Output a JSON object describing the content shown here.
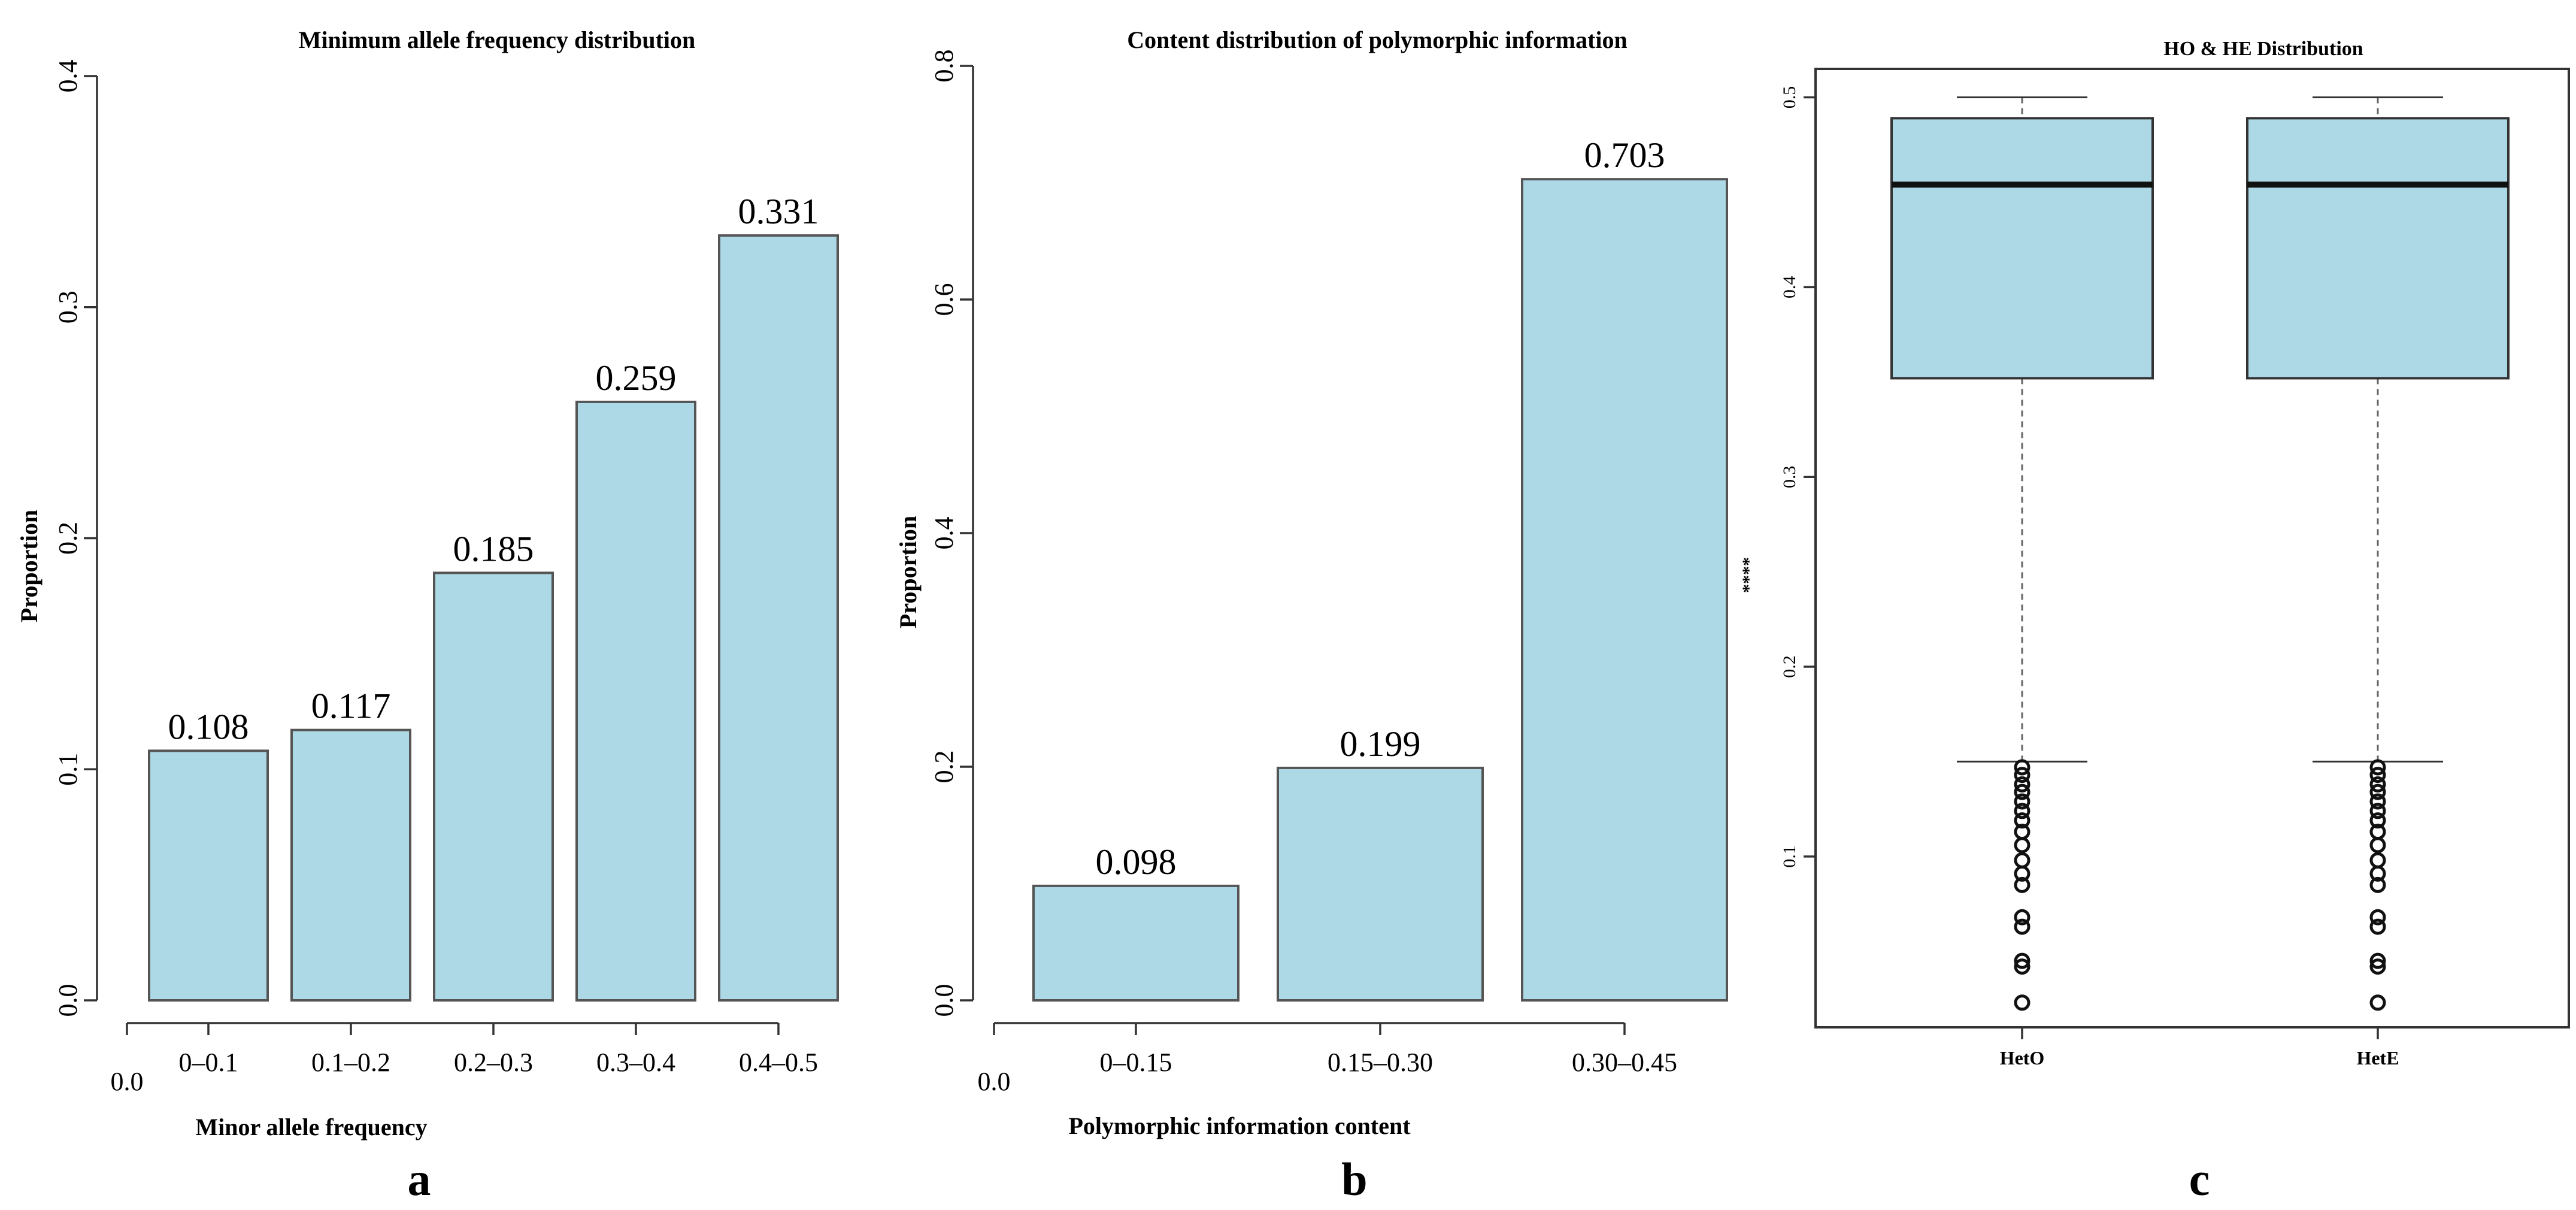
{
  "chart_data": [
    {
      "panel": "a",
      "type": "bar",
      "title": "Minimum allele frequency distribution",
      "xlabel": "Minor allele frequency",
      "ylabel": "Proportion",
      "categories": [
        "0–0.1",
        "0.1–0.2",
        "0.2–0.3",
        "0.3–0.4",
        "0.4–0.5"
      ],
      "values": [
        0.108,
        0.117,
        0.185,
        0.259,
        0.331
      ],
      "data_labels": [
        "0.108",
        "0.117",
        "0.185",
        "0.259",
        "0.331"
      ],
      "x_origin_label": "0.0",
      "ylim": [
        0,
        0.4
      ],
      "yticks": [
        0,
        0.1,
        0.2,
        0.3,
        0.4
      ],
      "ytick_labels": [
        "0.0",
        "0.1",
        "0.2",
        "0.3",
        "0.4"
      ],
      "bar_color": "#add8e6"
    },
    {
      "panel": "b",
      "type": "bar",
      "title": "Content distribution of polymorphic information",
      "xlabel": "Polymorphic information content",
      "ylabel": "Proportion",
      "categories": [
        "0–0.15",
        "0.15–0.30",
        "0.30–0.45"
      ],
      "values": [
        0.098,
        0.199,
        0.703
      ],
      "data_labels": [
        "0.098",
        "0.199",
        "0.703"
      ],
      "x_origin_label": "0.0",
      "ylim": [
        0,
        0.8
      ],
      "yticks": [
        0,
        0.2,
        0.4,
        0.6,
        0.8
      ],
      "ytick_labels": [
        "0.0",
        "0.2",
        "0.4",
        "0.6",
        "0.8"
      ],
      "bar_color": "#add8e6"
    },
    {
      "panel": "c",
      "type": "box",
      "title": "HO  &  HE Distribution",
      "ylabel": "****",
      "categories": [
        "HetO",
        "HetE"
      ],
      "series": [
        {
          "name": "HetO",
          "whisker_low": 0.15,
          "q1": 0.352,
          "median": 0.454,
          "q3": 0.489,
          "whisker_high": 0.5,
          "outliers": [
            0.147,
            0.143,
            0.138,
            0.134,
            0.129,
            0.124,
            0.119,
            0.113,
            0.106,
            0.098,
            0.091,
            0.085,
            0.068,
            0.063,
            0.045,
            0.042,
            0.023
          ]
        },
        {
          "name": "HetE",
          "whisker_low": 0.15,
          "q1": 0.352,
          "median": 0.454,
          "q3": 0.489,
          "whisker_high": 0.5,
          "outliers": [
            0.147,
            0.143,
            0.138,
            0.134,
            0.129,
            0.124,
            0.119,
            0.113,
            0.106,
            0.098,
            0.091,
            0.085,
            0.068,
            0.063,
            0.045,
            0.042,
            0.023
          ]
        }
      ],
      "ylim": [
        0.01,
        0.515
      ],
      "yticks": [
        0.1,
        0.2,
        0.3,
        0.4,
        0.5
      ],
      "ytick_labels": [
        "0.1",
        "0.2",
        "0.3",
        "0.4",
        "0.5"
      ],
      "box_color": "#add8e6"
    }
  ]
}
